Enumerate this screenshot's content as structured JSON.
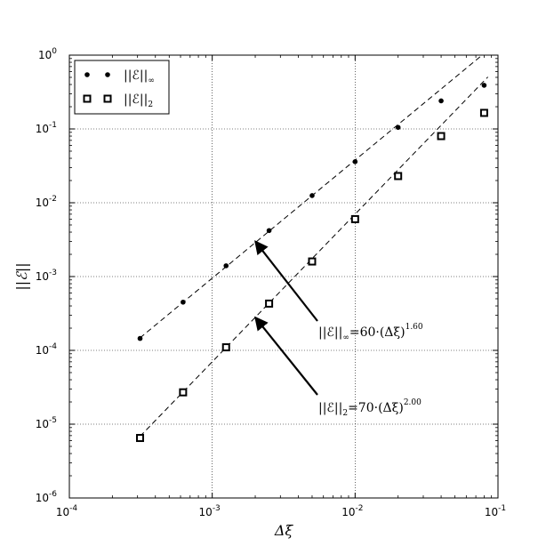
{
  "chart_data": {
    "type": "scatter",
    "xlabel": "Δξ",
    "ylabel": "||ℰ||",
    "xscale": "log",
    "yscale": "log",
    "xlim": [
      0.0001,
      0.1
    ],
    "ylim": [
      1e-06,
      1
    ],
    "grid": true,
    "legend_position": "top-left",
    "x_ticks": [
      {
        "base": "10",
        "exp": "-4"
      },
      {
        "base": "10",
        "exp": "-3"
      },
      {
        "base": "10",
        "exp": "-2"
      },
      {
        "base": "10",
        "exp": "-1"
      }
    ],
    "y_ticks": [
      {
        "base": "10",
        "exp": "-6"
      },
      {
        "base": "10",
        "exp": "-5"
      },
      {
        "base": "10",
        "exp": "-4"
      },
      {
        "base": "10",
        "exp": "-3"
      },
      {
        "base": "10",
        "exp": "-2"
      },
      {
        "base": "10",
        "exp": "-1"
      },
      {
        "base": "10",
        "exp": "0"
      }
    ],
    "series": [
      {
        "name": "||ℰ||∞",
        "name_main": "||ℰ||",
        "name_sub": "∞",
        "marker": "dot",
        "x": [
          0.0003125,
          0.000625,
          0.00125,
          0.0025,
          0.005,
          0.01,
          0.02,
          0.04,
          0.08
        ],
        "y": [
          0.000145,
          0.00045,
          0.0014,
          0.0042,
          0.0125,
          0.036,
          0.105,
          0.24,
          0.39
        ]
      },
      {
        "name": "||ℰ||2",
        "name_main": "||ℰ||",
        "name_sub": "2",
        "marker": "square",
        "x": [
          0.0003125,
          0.000625,
          0.00125,
          0.0025,
          0.005,
          0.01,
          0.02,
          0.04,
          0.08
        ],
        "y": [
          6.5e-06,
          2.7e-05,
          0.00011,
          0.00043,
          0.0016,
          0.006,
          0.023,
          0.08,
          0.165
        ]
      }
    ],
    "fits": [
      {
        "series": "||ℰ||∞",
        "coefficient": 60,
        "exponent": 1.6,
        "x_range": [
          0.0003125,
          0.085
        ]
      },
      {
        "series": "||ℰ||2",
        "coefficient": 70,
        "exponent": 2.0,
        "x_range": [
          0.0003125,
          0.085
        ]
      }
    ],
    "annotations": [
      {
        "pre": "||ℰ||",
        "sub": "∞",
        "mid": "=60·(Δξ)",
        "sup": "1.60",
        "arrow_to": [
          0.002,
          0.003
        ]
      },
      {
        "pre": "||ℰ||",
        "sub": "2",
        "mid": "=70·(Δξ)",
        "sup": "2.00",
        "arrow_to": [
          0.002,
          0.00028
        ]
      }
    ]
  }
}
